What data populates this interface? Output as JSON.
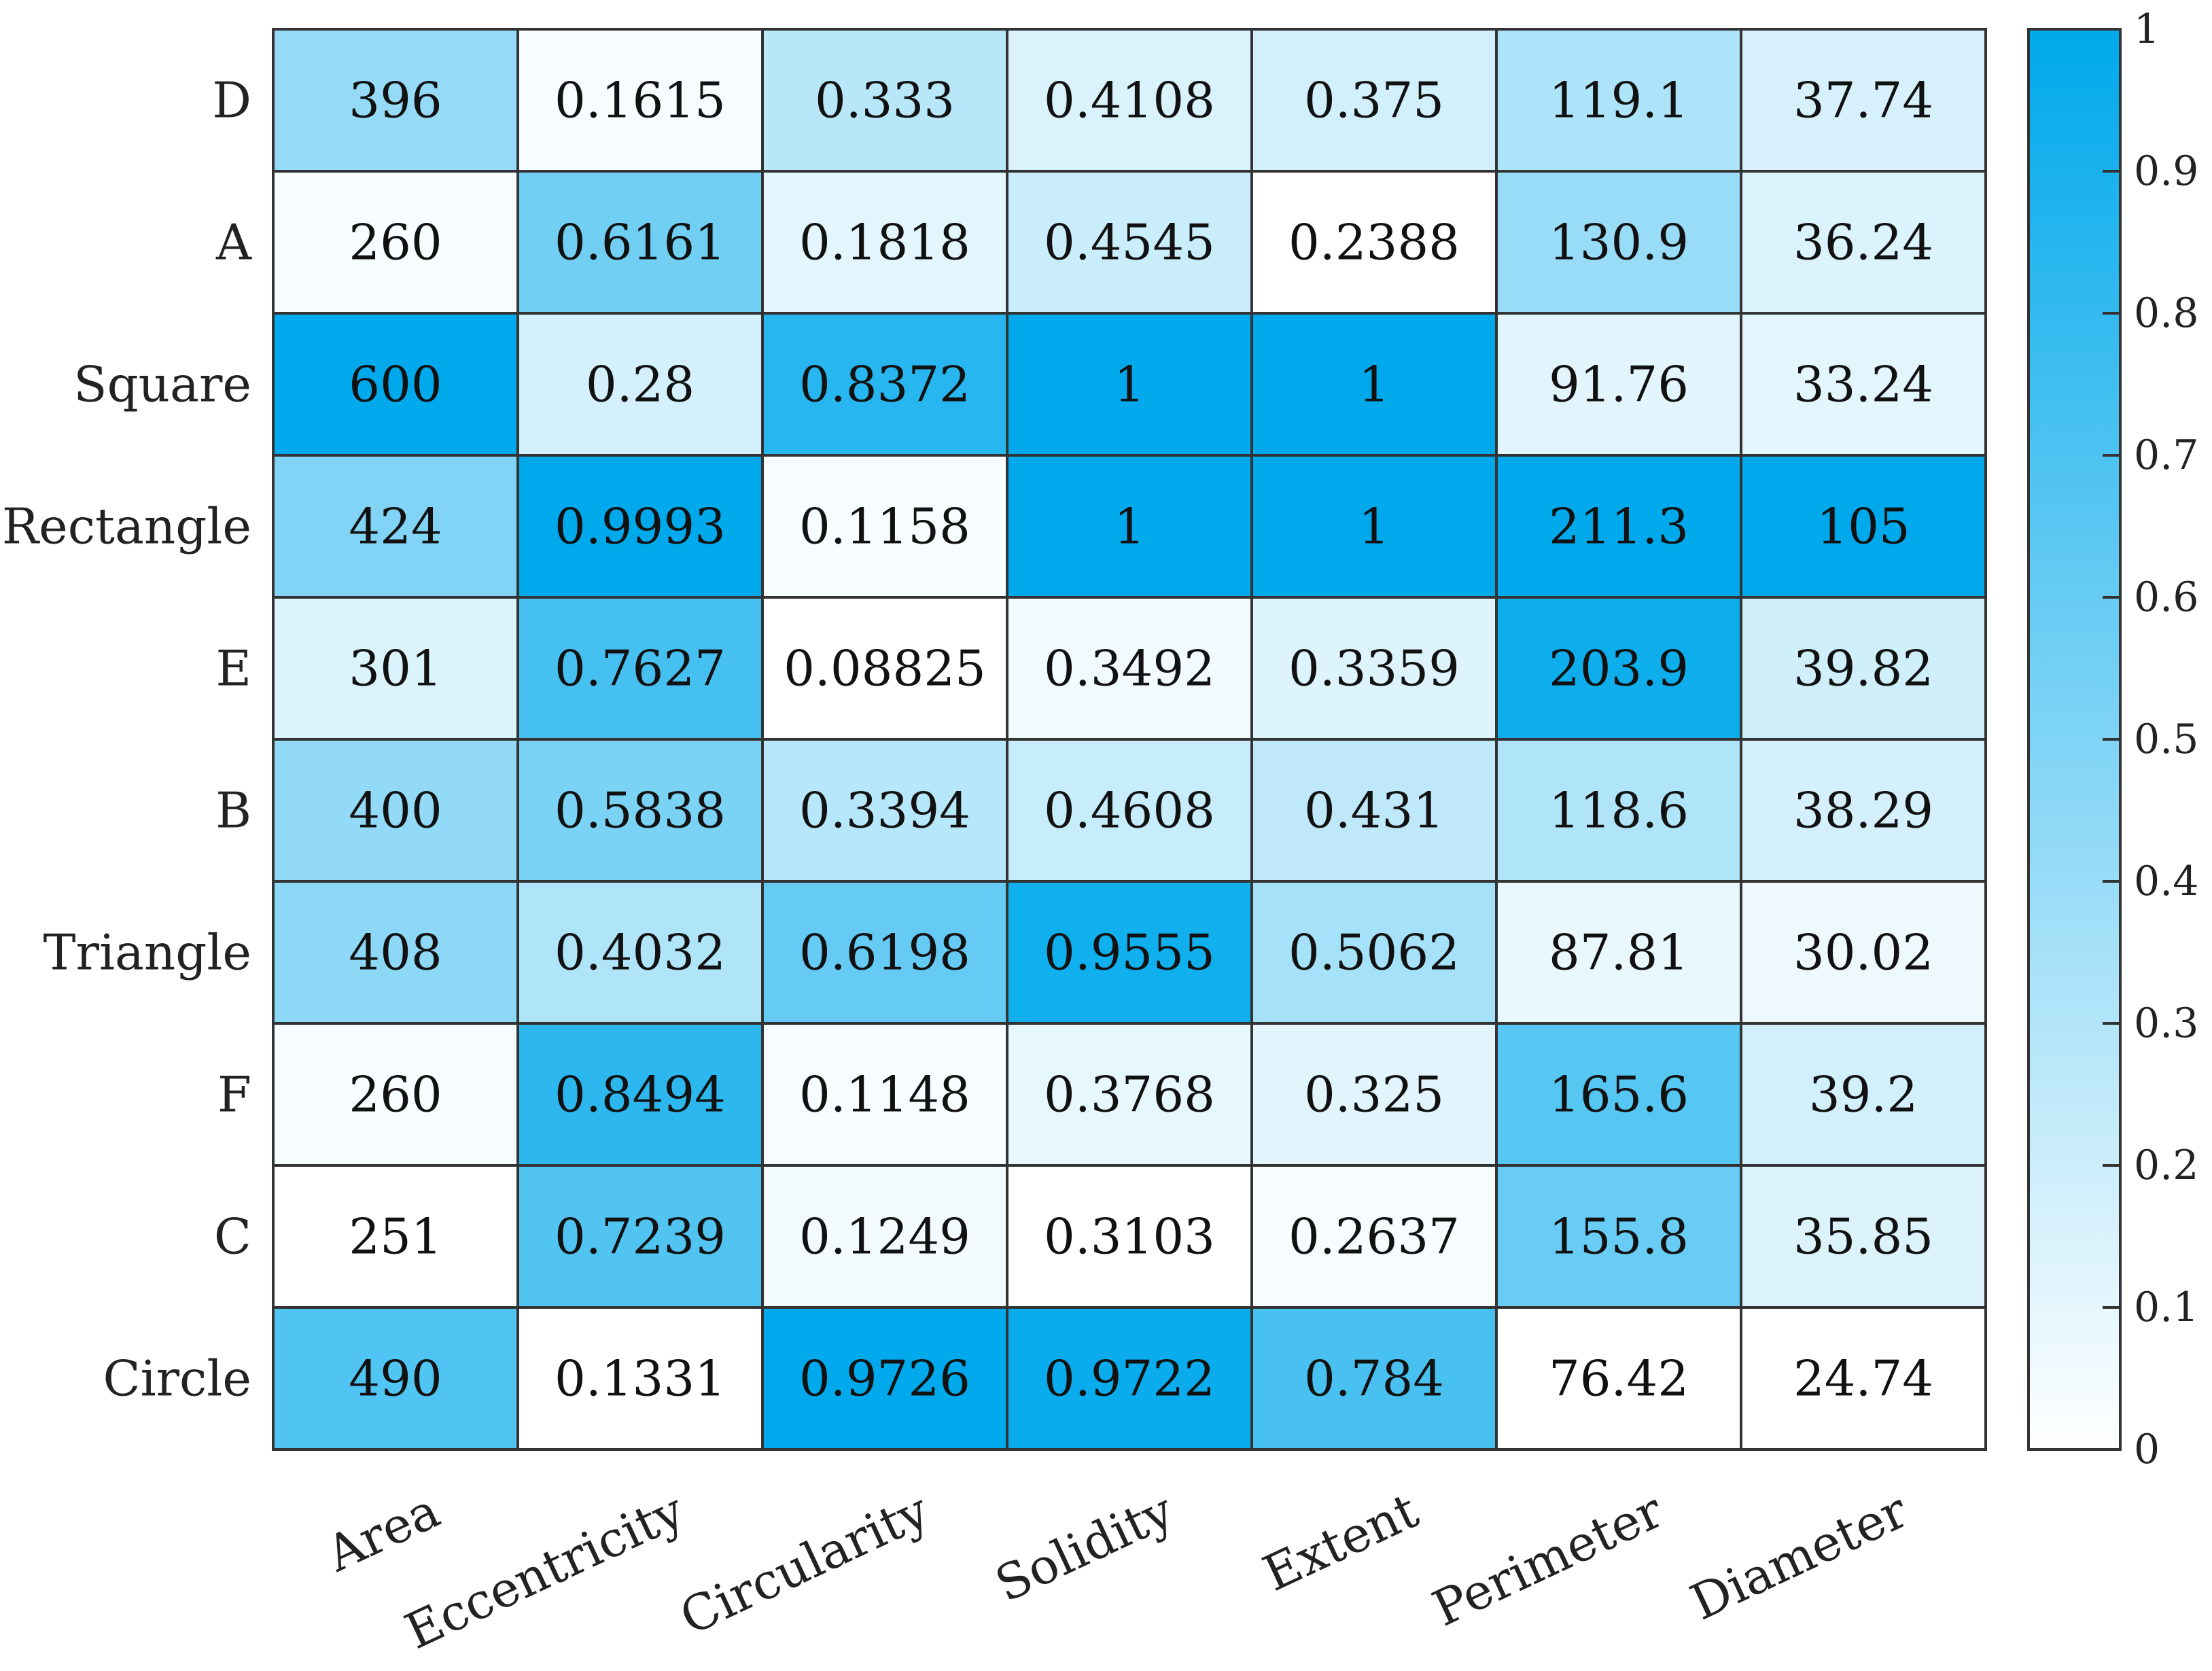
{
  "chart_data": {
    "type": "heatmap",
    "title": "",
    "xlabel": "",
    "ylabel": "",
    "rows": [
      "D",
      "A",
      "Square",
      "Rectangle",
      "E",
      "B",
      "Triangle",
      "F",
      "C",
      "Circle"
    ],
    "columns": [
      "Area",
      "Eccentricity",
      "Circularity",
      "Solidity",
      "Extent",
      "Perimeter",
      "Diameter"
    ],
    "cell_labels": [
      [
        "396",
        "0.1615",
        "0.333",
        "0.4108",
        "0.375",
        "119.1",
        "37.74"
      ],
      [
        "260",
        "0.6161",
        "0.1818",
        "0.4545",
        "0.2388",
        "130.9",
        "36.24"
      ],
      [
        "600",
        "0.28",
        "0.8372",
        "1",
        "1",
        "91.76",
        "33.24"
      ],
      [
        "424",
        "0.9993",
        "0.1158",
        "1",
        "1",
        "211.3",
        "105"
      ],
      [
        "301",
        "0.7627",
        "0.08825",
        "0.3492",
        "0.3359",
        "203.9",
        "39.82"
      ],
      [
        "400",
        "0.5838",
        "0.3394",
        "0.4608",
        "0.431",
        "118.6",
        "38.29"
      ],
      [
        "408",
        "0.4032",
        "0.6198",
        "0.9555",
        "0.5062",
        "87.81",
        "30.02"
      ],
      [
        "260",
        "0.8494",
        "0.1148",
        "0.3768",
        "0.325",
        "165.6",
        "39.2"
      ],
      [
        "251",
        "0.7239",
        "0.1249",
        "0.3103",
        "0.2637",
        "155.8",
        "35.85"
      ],
      [
        "490",
        "0.1331",
        "0.9726",
        "0.9722",
        "0.784",
        "76.42",
        "24.74"
      ]
    ],
    "normalization": "per-column min-max",
    "colorbar": {
      "min": 0,
      "max": 1,
      "ticks": [
        "0",
        "0.1",
        "0.2",
        "0.3",
        "0.4",
        "0.5",
        "0.6",
        "0.7",
        "0.8",
        "0.9",
        "1"
      ],
      "low_color": "#ffffff",
      "high_color": "#00a9ec",
      "placement": "right"
    },
    "grid": true,
    "x_tick_rotation_deg": -25
  }
}
